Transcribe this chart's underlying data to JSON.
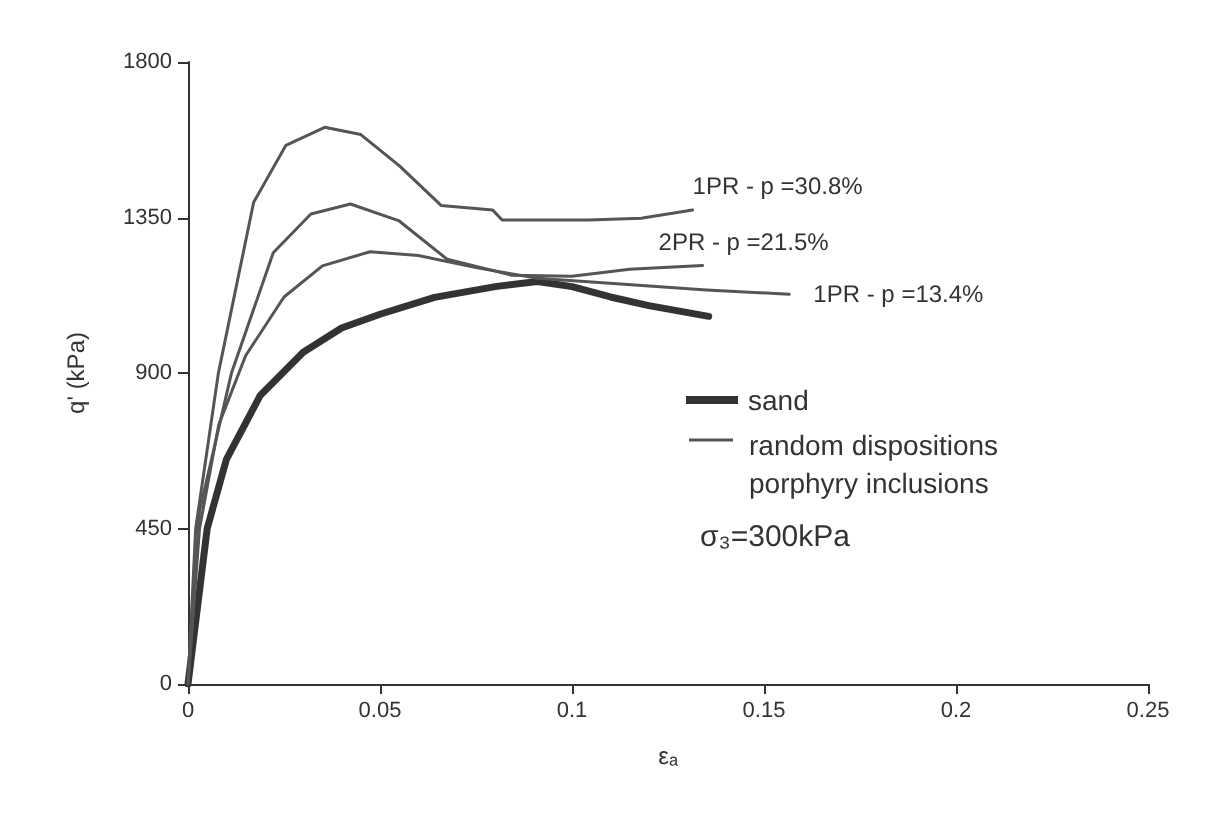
{
  "chart_data": {
    "type": "line",
    "xlabel": "εₐ",
    "ylabel": "q' (kPa)",
    "xlim": [
      0,
      0.25
    ],
    "xticks": [
      0,
      0.05,
      0.1,
      0.15,
      0.2,
      0.25
    ],
    "ylim": [
      0,
      1800
    ],
    "yticks": [
      0,
      450,
      900,
      1350,
      1800
    ],
    "grid": false,
    "legend": "right",
    "marker": "none",
    "line_style": "solid",
    "annotations": [
      "random dispositions\nporphyry inclusions",
      "σ₃=300kPa"
    ],
    "series": [
      {
        "name": "sand",
        "color": "#333333",
        "x": [
          0,
          0.005,
          0.01,
          0.0188,
          0.03,
          0.04,
          0.05,
          0.0642,
          0.08,
          0.091,
          0.1,
          0.11,
          0.12,
          0.1356
        ],
        "values": [
          0,
          450,
          650,
          835,
          960,
          1030,
          1070,
          1119,
          1150,
          1165,
          1150,
          1120,
          1095,
          1064
        ]
      },
      {
        "name": "1PR - p =30.8%",
        "color": "#555555",
        "x": [
          0,
          0.002,
          0.0079,
          0.0171,
          0.0255,
          0.0356,
          0.045,
          0.055,
          0.0659,
          0.0793,
          0.0818,
          0.1045,
          0.118,
          0.1314
        ],
        "values": [
          0,
          450,
          899,
          1394,
          1559,
          1611,
          1590,
          1500,
          1385,
          1372,
          1343,
          1343,
          1348,
          1372
        ]
      },
      {
        "name": "2PR - p =21.5%",
        "color": "#555555",
        "x": [
          0,
          0.003,
          0.0113,
          0.0222,
          0.032,
          0.0423,
          0.055,
          0.0675,
          0.0843,
          0.1,
          0.115,
          0.134
        ],
        "values": [
          0,
          500,
          899,
          1248,
          1360,
          1389,
          1340,
          1229,
          1183,
          1180,
          1200,
          1211
        ]
      },
      {
        "name": "1PR - p =13.4%",
        "color": "#555555",
        "x": [
          0,
          0.003,
          0.008,
          0.015,
          0.025,
          0.035,
          0.0474,
          0.06,
          0.075,
          0.091,
          0.1145,
          0.135,
          0.1566
        ],
        "values": [
          0,
          450,
          750,
          950,
          1120,
          1210,
          1251,
          1240,
          1205,
          1174,
          1156,
          1140,
          1128
        ]
      }
    ]
  }
}
